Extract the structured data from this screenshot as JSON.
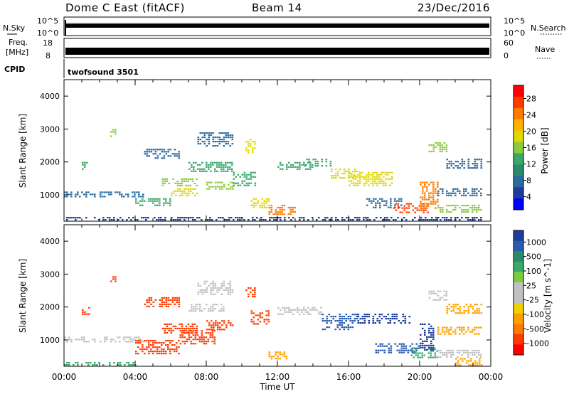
{
  "header": {
    "title": "Dome C East (fitACF)",
    "beam": "Beam 14",
    "date": "23/Dec/2016"
  },
  "panels": {
    "nsky": {
      "label": "N.Sky",
      "ticks": [
        "10^5",
        "10^0"
      ]
    },
    "nsearch": {
      "label": "N.Search",
      "ticks": [
        "10^5",
        "10^0"
      ]
    },
    "freq": {
      "label_line1": "Freq.",
      "label_line2": "[MHz]",
      "ticks": [
        "18",
        "8"
      ]
    },
    "nave": {
      "label": "Nave",
      "ticks": [
        "60",
        "0"
      ]
    },
    "cpid": {
      "label": "CPID",
      "value": "twofsound 3501"
    }
  },
  "chart_data": [
    {
      "type": "heatmap",
      "name": "power",
      "xlabel": "Time UT",
      "ylabel": "Slant Range [km]",
      "xlim": [
        0,
        24
      ],
      "ylim": [
        200,
        4500
      ],
      "x_tick_labels": [
        "00:00",
        "04:00",
        "08:00",
        "12:00",
        "16:00",
        "20:00",
        "00:00"
      ],
      "y_ticks": [
        1000,
        2000,
        3000,
        4000
      ],
      "colorbar": {
        "label": "Power [dB]",
        "ticks": [
          "28",
          "24",
          "20",
          "16",
          "12",
          "8",
          "4"
        ],
        "colors": [
          "#ff0000",
          "#ff3a00",
          "#ff7a00",
          "#ffb000",
          "#e0d800",
          "#8ccc3c",
          "#3aa86a",
          "#2a8a6a",
          "#2a6aa0",
          "#1e3c9c",
          "#0000ff"
        ]
      },
      "regions": [
        {
          "t0": 0.0,
          "t1": 23.5,
          "r0": 220,
          "r1": 330,
          "value": 4
        },
        {
          "t0": 0.0,
          "t1": 1.8,
          "r0": 950,
          "r1": 1100,
          "value": 8
        },
        {
          "t0": 1.0,
          "t1": 1.4,
          "r0": 1750,
          "r1": 2000,
          "value": 12
        },
        {
          "t0": 2.6,
          "t1": 2.9,
          "r0": 2750,
          "r1": 3000,
          "value": 16
        },
        {
          "t0": 2.0,
          "t1": 4.5,
          "r0": 950,
          "r1": 1100,
          "value": 8
        },
        {
          "t0": 4.0,
          "t1": 6.0,
          "r0": 700,
          "r1": 900,
          "value": 12
        },
        {
          "t0": 4.5,
          "t1": 6.5,
          "r0": 2100,
          "r1": 2400,
          "value": 8
        },
        {
          "t0": 5.5,
          "t1": 7.5,
          "r0": 1300,
          "r1": 1500,
          "value": 16
        },
        {
          "t0": 6.0,
          "t1": 7.5,
          "r0": 1000,
          "r1": 1200,
          "value": 20
        },
        {
          "t0": 7.0,
          "t1": 9.5,
          "r0": 1700,
          "r1": 2000,
          "value": 12
        },
        {
          "t0": 7.5,
          "t1": 9.5,
          "r0": 2500,
          "r1": 2900,
          "value": 8
        },
        {
          "t0": 8.0,
          "t1": 9.5,
          "r0": 1150,
          "r1": 1400,
          "value": 16
        },
        {
          "t0": 9.5,
          "t1": 10.8,
          "r0": 1300,
          "r1": 1700,
          "value": 12
        },
        {
          "t0": 10.2,
          "t1": 10.7,
          "r0": 2300,
          "r1": 2700,
          "value": 20
        },
        {
          "t0": 10.5,
          "t1": 11.5,
          "r0": 600,
          "r1": 900,
          "value": 20
        },
        {
          "t0": 11.5,
          "t1": 13.0,
          "r0": 400,
          "r1": 700,
          "value": 24
        },
        {
          "t0": 12.0,
          "t1": 14.0,
          "r0": 1800,
          "r1": 2000,
          "value": 12
        },
        {
          "t0": 13.5,
          "t1": 15.0,
          "r0": 1900,
          "r1": 2100,
          "value": 12
        },
        {
          "t0": 15.0,
          "t1": 16.5,
          "r0": 1500,
          "r1": 1800,
          "value": 20
        },
        {
          "t0": 16.0,
          "t1": 18.5,
          "r0": 1300,
          "r1": 1700,
          "value": 20
        },
        {
          "t0": 17.0,
          "t1": 19.0,
          "r0": 600,
          "r1": 900,
          "value": 8
        },
        {
          "t0": 18.5,
          "t1": 20.5,
          "r0": 450,
          "r1": 750,
          "value": 28
        },
        {
          "t0": 20.0,
          "t1": 21.0,
          "r0": 600,
          "r1": 1400,
          "value": 24
        },
        {
          "t0": 20.5,
          "t1": 21.5,
          "r0": 2300,
          "r1": 2600,
          "value": 16
        },
        {
          "t0": 21.0,
          "t1": 23.5,
          "r0": 450,
          "r1": 700,
          "value": 16
        },
        {
          "t0": 21.0,
          "t1": 23.5,
          "r0": 1000,
          "r1": 1200,
          "value": 8
        },
        {
          "t0": 21.5,
          "t1": 23.5,
          "r0": 1800,
          "r1": 2100,
          "value": 8
        }
      ]
    },
    {
      "type": "heatmap",
      "name": "velocity",
      "xlabel": "Time UT",
      "ylabel": "Slant Range [km]",
      "xlim": [
        0,
        24
      ],
      "ylim": [
        200,
        4500
      ],
      "x_tick_labels": [
        "00:00",
        "04:00",
        "08:00",
        "12:00",
        "16:00",
        "20:00",
        "00:00"
      ],
      "y_ticks": [
        1000,
        2000,
        3000,
        4000
      ],
      "colorbar": {
        "label": "Velocity [m s^-1]",
        "ticks": [
          "1000",
          "500",
          "100",
          "25",
          "-25",
          "-100",
          "-500",
          "-1000"
        ],
        "colors": [
          "#1e3c9c",
          "#2a5ab0",
          "#2a8a6a",
          "#3aa86a",
          "#7acc3a",
          "#c0c0c0",
          "#c0c0c0",
          "#f0d000",
          "#ffa000",
          "#ff7a00",
          "#ff3a00",
          "#ff0000"
        ]
      },
      "regions": [
        {
          "t0": 0.0,
          "t1": 4.0,
          "r0": 220,
          "r1": 330,
          "value": 100
        },
        {
          "t0": 0.0,
          "t1": 1.8,
          "r0": 950,
          "r1": 1100,
          "value": 0
        },
        {
          "t0": 1.0,
          "t1": 1.4,
          "r0": 1750,
          "r1": 2000,
          "value": -500
        },
        {
          "t0": 2.6,
          "t1": 2.9,
          "r0": 2750,
          "r1": 3000,
          "value": -500
        },
        {
          "t0": 2.0,
          "t1": 4.5,
          "r0": 950,
          "r1": 1100,
          "value": 0
        },
        {
          "t0": 4.0,
          "t1": 6.5,
          "r0": 600,
          "r1": 1000,
          "value": -500
        },
        {
          "t0": 4.5,
          "t1": 6.5,
          "r0": 2000,
          "r1": 2300,
          "value": -500
        },
        {
          "t0": 5.5,
          "t1": 7.5,
          "r0": 1200,
          "r1": 1500,
          "value": -500
        },
        {
          "t0": 6.5,
          "t1": 8.5,
          "r0": 900,
          "r1": 1300,
          "value": -500
        },
        {
          "t0": 7.0,
          "t1": 9.0,
          "r0": 1900,
          "r1": 2100,
          "value": 0
        },
        {
          "t0": 7.5,
          "t1": 9.5,
          "r0": 2400,
          "r1": 2800,
          "value": 0
        },
        {
          "t0": 8.0,
          "t1": 9.5,
          "r0": 1300,
          "r1": 1600,
          "value": -500
        },
        {
          "t0": 10.2,
          "t1": 10.7,
          "r0": 2300,
          "r1": 2600,
          "value": -500
        },
        {
          "t0": 10.5,
          "t1": 11.5,
          "r0": 1500,
          "r1": 1900,
          "value": -500
        },
        {
          "t0": 11.5,
          "t1": 12.5,
          "r0": 400,
          "r1": 650,
          "value": -100
        },
        {
          "t0": 12.0,
          "t1": 14.5,
          "r0": 1800,
          "r1": 2000,
          "value": 0
        },
        {
          "t0": 14.5,
          "t1": 16.5,
          "r0": 1300,
          "r1": 1800,
          "value": 500
        },
        {
          "t0": 16.5,
          "t1": 19.5,
          "r0": 1500,
          "r1": 1800,
          "value": 1000
        },
        {
          "t0": 17.5,
          "t1": 20.0,
          "r0": 600,
          "r1": 900,
          "value": 500
        },
        {
          "t0": 19.5,
          "t1": 21.0,
          "r0": 450,
          "r1": 750,
          "value": 100
        },
        {
          "t0": 20.0,
          "t1": 20.8,
          "r0": 700,
          "r1": 1500,
          "value": 1000
        },
        {
          "t0": 20.5,
          "t1": 21.5,
          "r0": 2200,
          "r1": 2500,
          "value": 0
        },
        {
          "t0": 21.0,
          "t1": 23.5,
          "r0": 450,
          "r1": 700,
          "value": 0
        },
        {
          "t0": 21.0,
          "t1": 23.5,
          "r0": 1200,
          "r1": 1400,
          "value": -100
        },
        {
          "t0": 21.5,
          "t1": 23.5,
          "r0": 1800,
          "r1": 2100,
          "value": -100
        },
        {
          "t0": 22.0,
          "t1": 23.5,
          "r0": 200,
          "r1": 450,
          "value": -100
        }
      ]
    }
  ]
}
